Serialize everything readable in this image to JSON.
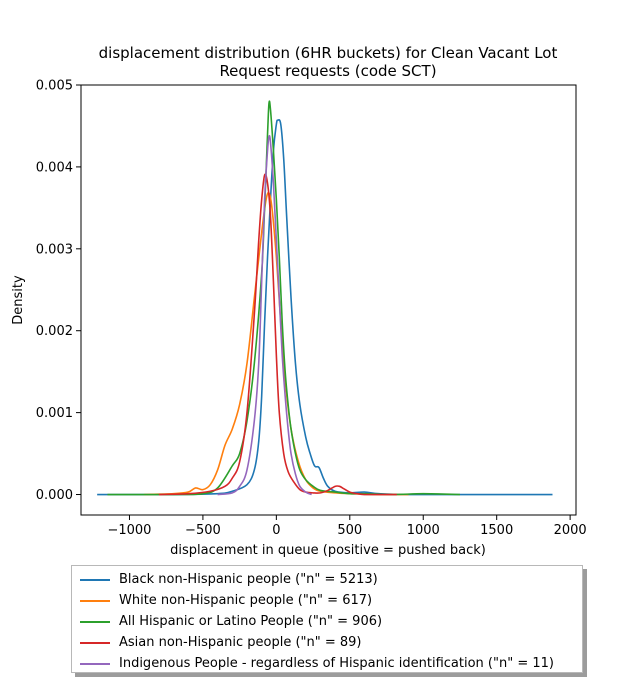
{
  "chart_data": {
    "type": "line",
    "title_line1": "displacement distribution (6HR buckets) for Clean Vacant Lot",
    "title_line2": "Request requests (code SCT)",
    "xlabel": "displacement in queue (positive = pushed back)",
    "ylabel": "Density",
    "xlim": [
      -1330,
      2040
    ],
    "ylim": [
      -0.00025,
      0.005
    ],
    "xticks": [
      -1000,
      -500,
      0,
      500,
      1000,
      1500,
      2000
    ],
    "xtick_labels": [
      "−1000",
      "−500",
      "0",
      "500",
      "1000",
      "1500",
      "2000"
    ],
    "yticks": [
      0.0,
      0.001,
      0.002,
      0.003,
      0.004,
      0.005
    ],
    "ytick_labels": [
      "0.000",
      "0.001",
      "0.002",
      "0.003",
      "0.004",
      "0.005"
    ],
    "legend_position": "below-chart",
    "series": [
      {
        "name": "Black non-Hispanic people (\"n\" = 5213)",
        "color": "#1f77b4",
        "x": [
          -1220,
          -700,
          -400,
          -300,
          -200,
          -150,
          -120,
          -100,
          -80,
          -60,
          -40,
          -20,
          0,
          10,
          30,
          50,
          70,
          100,
          130,
          160,
          200,
          230,
          260,
          290,
          320,
          350,
          400,
          500,
          600,
          700,
          900,
          1200,
          1500,
          1880
        ],
        "y": [
          0,
          0,
          1e-05,
          4e-05,
          0.00012,
          0.0003,
          0.00065,
          0.0012,
          0.0021,
          0.0029,
          0.0036,
          0.0042,
          0.00452,
          0.00457,
          0.00452,
          0.0041,
          0.0034,
          0.0024,
          0.0016,
          0.0011,
          0.0007,
          0.0005,
          0.00035,
          0.00033,
          0.0002,
          0.0001,
          4e-05,
          2e-05,
          3e-05,
          1e-05,
          0,
          0,
          0,
          0
        ]
      },
      {
        "name": "White non-Hispanic people (\"n\" = 617)",
        "color": "#ff7f0e",
        "x": [
          -900,
          -700,
          -600,
          -550,
          -500,
          -450,
          -400,
          -350,
          -300,
          -250,
          -200,
          -150,
          -100,
          -70,
          -50,
          -30,
          0,
          30,
          60,
          100,
          150,
          200,
          250,
          300,
          400,
          500,
          700,
          900
        ],
        "y": [
          0,
          1e-05,
          3e-05,
          8e-05,
          6e-05,
          0.00012,
          0.0003,
          0.0006,
          0.0008,
          0.0011,
          0.0016,
          0.0024,
          0.0032,
          0.0036,
          0.00368,
          0.0035,
          0.0029,
          0.0021,
          0.0014,
          0.0008,
          0.0004,
          0.00018,
          8e-05,
          4e-05,
          2e-05,
          1e-05,
          0,
          0
        ]
      },
      {
        "name": "All Hispanic or Latino People (\"n\" = 906)",
        "color": "#2ca02c",
        "x": [
          -1150,
          -700,
          -500,
          -400,
          -300,
          -250,
          -200,
          -150,
          -100,
          -80,
          -60,
          -50,
          -40,
          -20,
          0,
          20,
          40,
          60,
          80,
          100,
          130,
          160,
          200,
          250,
          300,
          400,
          500,
          600,
          800,
          1000,
          1250
        ],
        "y": [
          0,
          0,
          1e-05,
          8e-05,
          0.00035,
          0.0005,
          0.0009,
          0.0016,
          0.0027,
          0.0035,
          0.0044,
          0.00478,
          0.0047,
          0.0042,
          0.0036,
          0.0029,
          0.0021,
          0.0015,
          0.0011,
          0.0008,
          0.0005,
          0.0003,
          0.00018,
          0.0001,
          5e-05,
          3e-05,
          1e-05,
          1e-05,
          0,
          1e-05,
          0
        ]
      },
      {
        "name": "Asian non-Hispanic people (\"n\" = 89)",
        "color": "#d62728",
        "x": [
          -800,
          -600,
          -450,
          -350,
          -300,
          -250,
          -200,
          -150,
          -120,
          -100,
          -80,
          -60,
          -40,
          -20,
          0,
          20,
          50,
          80,
          120,
          160,
          200,
          250,
          300,
          350,
          400,
          430,
          460,
          500,
          550,
          600,
          700,
          820
        ],
        "y": [
          0,
          1e-05,
          4e-05,
          0.0001,
          0.0002,
          0.0004,
          0.001,
          0.0022,
          0.0031,
          0.0036,
          0.0039,
          0.0038,
          0.0034,
          0.0026,
          0.0017,
          0.001,
          0.0005,
          0.00028,
          0.00015,
          6e-05,
          3e-05,
          2e-05,
          2e-05,
          5e-05,
          0.0001,
          0.0001,
          7e-05,
          3e-05,
          1e-05,
          0,
          0,
          0
        ]
      },
      {
        "name": "Indigenous People - regardless of Hispanic identification (\"n\" = 11)",
        "color": "#9467bd",
        "x": [
          -400,
          -300,
          -250,
          -200,
          -150,
          -120,
          -100,
          -80,
          -60,
          -50,
          -40,
          -20,
          0,
          20,
          40,
          60,
          80,
          100,
          130,
          160,
          200,
          240
        ],
        "y": [
          0,
          2e-05,
          0.0001,
          0.0003,
          0.0009,
          0.0016,
          0.0026,
          0.0036,
          0.0042,
          0.00437,
          0.0043,
          0.0038,
          0.0031,
          0.0024,
          0.0017,
          0.0012,
          0.0008,
          0.0005,
          0.00025,
          0.0001,
          3e-05,
          0
        ]
      }
    ]
  }
}
